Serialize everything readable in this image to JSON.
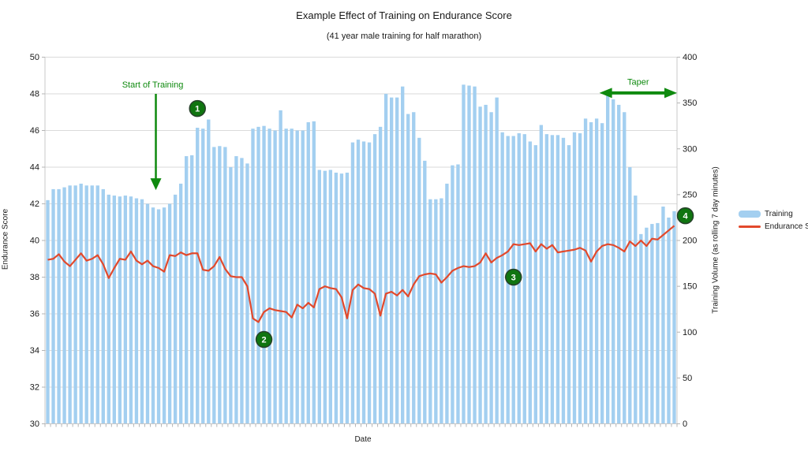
{
  "header": {
    "title": "Example Effect of Training on Endurance Score",
    "subtitle": "(41 year male training for half marathon)"
  },
  "chart_data": {
    "type": "combo",
    "title": "Example Effect of Training on Endurance Score",
    "subtitle": "(41 year male training for half marathon)",
    "x_axis": {
      "label": "Date",
      "tick_labels_visible": false,
      "num_days": 114
    },
    "y_axis_left": {
      "label": "Endurance Score",
      "min": 30,
      "max": 50,
      "tick_step": 2
    },
    "y_axis_right": {
      "label": "Training Volume (as rolling 7 day minutes)",
      "min": 0,
      "max": 400,
      "tick_step": 50
    },
    "grid": {
      "color": "#dadada",
      "values": [
        32,
        34,
        36,
        38,
        40,
        42,
        44,
        46,
        48,
        50
      ]
    },
    "legend": {
      "position": "right",
      "entries": [
        {
          "label": "Training",
          "type": "bar",
          "color": "#a3cff0"
        },
        {
          "label": "Endurance Score",
          "type": "line",
          "color": "#e2492c"
        }
      ]
    },
    "series": [
      {
        "name": "Training",
        "type": "bar",
        "axis": "right",
        "units": "minutes per rolling 7 days",
        "color": "#a3cff0",
        "values": [
          244,
          256,
          256,
          258,
          260,
          260,
          262,
          260,
          260,
          260,
          256,
          250,
          249,
          248,
          249,
          248,
          246,
          245,
          240,
          236,
          234,
          236,
          240,
          250,
          262,
          292,
          293,
          323,
          322,
          332,
          302,
          303,
          302,
          280,
          292,
          290,
          284,
          322,
          324,
          325,
          322,
          320,
          342,
          322,
          322,
          320,
          320,
          329,
          330,
          277,
          276,
          277,
          274,
          273,
          274,
          307,
          310,
          308,
          307,
          316,
          324,
          360,
          356,
          356,
          368,
          338,
          340,
          312,
          287,
          245,
          245,
          246,
          262,
          282,
          283,
          370,
          369,
          368,
          346,
          348,
          340,
          356,
          318,
          314,
          314,
          317,
          316,
          308,
          304,
          326,
          316,
          315,
          315,
          312,
          304,
          318,
          317,
          333,
          329,
          333,
          328,
          360,
          354,
          348,
          340,
          280,
          249,
          207,
          214,
          218,
          219,
          237,
          225,
          232
        ]
      },
      {
        "name": "Endurance Score",
        "type": "line",
        "axis": "left",
        "color": "#e2492c",
        "values": [
          38.95,
          39.0,
          39.25,
          38.85,
          38.6,
          38.95,
          39.3,
          38.9,
          39.0,
          39.2,
          38.7,
          37.95,
          38.5,
          39.0,
          38.95,
          39.4,
          38.9,
          38.7,
          38.9,
          38.6,
          38.5,
          38.3,
          39.2,
          39.15,
          39.35,
          39.2,
          39.3,
          39.3,
          38.4,
          38.35,
          38.6,
          39.1,
          38.45,
          38.05,
          38.0,
          38.0,
          37.5,
          35.75,
          35.55,
          36.1,
          36.3,
          36.2,
          36.15,
          36.1,
          35.8,
          36.5,
          36.3,
          36.6,
          36.35,
          37.35,
          37.5,
          37.4,
          37.35,
          36.9,
          35.75,
          37.3,
          37.6,
          37.4,
          37.35,
          37.1,
          35.9,
          37.1,
          37.2,
          37.0,
          37.3,
          36.95,
          37.6,
          38.05,
          38.15,
          38.2,
          38.15,
          37.7,
          38.0,
          38.35,
          38.5,
          38.6,
          38.55,
          38.6,
          38.8,
          39.3,
          38.8,
          39.05,
          39.2,
          39.4,
          39.8,
          39.75,
          39.8,
          39.85,
          39.4,
          39.8,
          39.55,
          39.75,
          39.35,
          39.4,
          39.45,
          39.5,
          39.6,
          39.45,
          38.85,
          39.4,
          39.7,
          39.8,
          39.75,
          39.6,
          39.4,
          39.95,
          39.7,
          40.0,
          39.7,
          40.1,
          40.05,
          40.3,
          40.55,
          40.8
        ]
      }
    ],
    "annotations": {
      "start_of_training": {
        "text": "Start of Training",
        "day": 20,
        "arrow_from_value": 48.0,
        "arrow_to_value": 42.75,
        "text_value": 48.35,
        "color": "#0f8a0f"
      },
      "taper": {
        "text": "Taper",
        "day_start": 101,
        "day_end": 114,
        "value": 48.05,
        "text_value": 48.5,
        "color": "#0f8a0f"
      },
      "markers": [
        {
          "label": "1",
          "day": 28,
          "value": 47.2
        },
        {
          "label": "2",
          "day": 40,
          "value": 34.6
        },
        {
          "label": "3",
          "day": 85,
          "value": 38.0
        },
        {
          "label": "4",
          "day": 116,
          "value": 41.35
        }
      ],
      "marker_style": {
        "fill": "#107510",
        "stroke": "#26402a",
        "text_color": "#ffffff",
        "radius": 10
      }
    },
    "axis_style": {
      "line_color": "#c8c8c8",
      "tick_color": "#b5b5b5",
      "tick_label_color": "#1a1a1a"
    }
  }
}
